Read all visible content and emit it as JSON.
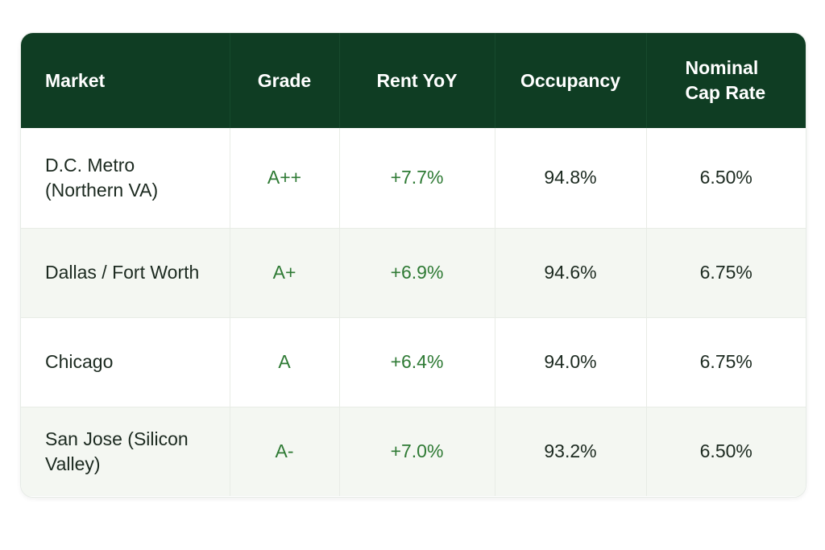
{
  "chart_data": {
    "type": "table",
    "columns": [
      "Market",
      "Grade",
      "Rent YoY",
      "Occupancy",
      "Nominal Cap Rate"
    ],
    "header": {
      "market": "Market",
      "grade": "Grade",
      "rent": "Rent YoY",
      "occupancy": "Occupancy",
      "cap_line1": "Nominal",
      "cap_line2": "Cap Rate"
    },
    "rows": [
      {
        "market": "D.C. Metro (Northern VA)",
        "grade": "A++",
        "rent_yoy": "+7.7%",
        "occupancy": "94.8%",
        "cap_rate": "6.50%"
      },
      {
        "market": "Dallas / Fort Worth",
        "grade": "A+",
        "rent_yoy": "+6.9%",
        "occupancy": "94.6%",
        "cap_rate": "6.75%"
      },
      {
        "market": "Chicago",
        "grade": "A",
        "rent_yoy": "+6.4%",
        "occupancy": "94.0%",
        "cap_rate": "6.75%"
      },
      {
        "market": "San Jose (Silicon Valley)",
        "grade": "A-",
        "rent_yoy": "+7.0%",
        "occupancy": "93.2%",
        "cap_rate": "6.50%"
      }
    ]
  },
  "colors": {
    "header_bg": "#0f3d23",
    "header_text": "#ffffff",
    "accent_green": "#2e7a34",
    "alt_row_bg": "#f4f7f2"
  }
}
